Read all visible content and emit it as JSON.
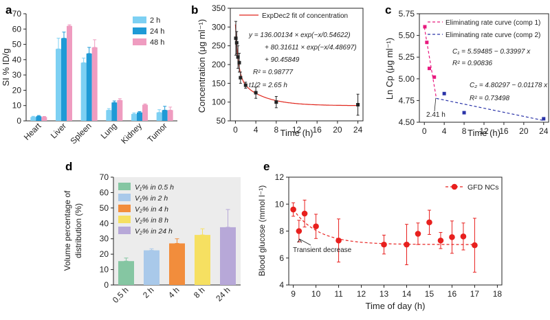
{
  "chart_data": [
    {
      "panel": "a",
      "type": "bar",
      "ylabel": "SI % ID/g",
      "categories": [
        "Heart",
        "Liver",
        "Spleen",
        "Lung",
        "Kidney",
        "Tumor"
      ],
      "ylim": [
        0,
        70
      ],
      "yticks": [
        0,
        10,
        20,
        30,
        40,
        50,
        60,
        70
      ],
      "legend_position": "top-right",
      "series": [
        {
          "name": "2 h",
          "color": "#7dd0f3",
          "values": [
            2.5,
            47,
            38,
            7,
            4.5,
            5.5
          ],
          "err": [
            0.5,
            7,
            3,
            1,
            0.7,
            1.8
          ]
        },
        {
          "name": "24 h",
          "color": "#1f9ad6",
          "values": [
            3,
            54,
            44,
            12,
            5.5,
            7
          ],
          "err": [
            0.5,
            4,
            4,
            1,
            0.6,
            2.5
          ]
        },
        {
          "name": "48 h",
          "color": "#ef9cc0",
          "values": [
            2.5,
            62,
            48,
            13.5,
            10.5,
            7
          ],
          "err": [
            0.4,
            0.8,
            5,
            1,
            0.6,
            2
          ]
        }
      ]
    },
    {
      "panel": "b",
      "type": "scatter",
      "xlabel": "Time (h)",
      "ylabel": "Concentration (μg ml⁻¹)",
      "xlim": [
        -1,
        25
      ],
      "ylim": [
        50,
        350
      ],
      "xticks": [
        0,
        4,
        8,
        12,
        16,
        20,
        24
      ],
      "yticks": [
        50,
        100,
        150,
        200,
        250,
        300,
        350
      ],
      "series": [
        {
          "name": "",
          "color": "#222222",
          "x": [
            0.08,
            0.25,
            0.5,
            0.75,
            1,
            2,
            4,
            8,
            24
          ],
          "y": [
            270,
            258,
            220,
            205,
            165,
            145,
            125,
            100,
            93
          ],
          "err": [
            45,
            30,
            30,
            25,
            15,
            8,
            15,
            15,
            28
          ]
        }
      ],
      "fit": {
        "name": "ExpDec2 fit of concentration",
        "color": "#e0251b"
      },
      "annotations": [
        "y = 136.00134 × exp(−x/0.54622)",
        "+ 80.31611 × exp(−x/4.48697)",
        "+ 90.45849",
        "R² = 0.98777",
        "t1/2 = 2.65 h"
      ]
    },
    {
      "panel": "c",
      "type": "scatter",
      "xlabel": "Time (h)",
      "ylabel": "Ln Cp (μg ml⁻¹)",
      "xlim": [
        -1,
        25
      ],
      "ylim": [
        4.5,
        5.75
      ],
      "xticks": [
        0,
        4,
        8,
        12,
        16,
        20,
        24
      ],
      "yticks": [
        4.5,
        4.75,
        5.0,
        5.25,
        5.5,
        5.75
      ],
      "series": [
        {
          "name": "Eliminating rate curve (comp 1)",
          "color": "#e8197e",
          "x": [
            0.1,
            0.5,
            1,
            2
          ],
          "y": [
            5.6,
            5.42,
            5.12,
            5.02
          ]
        },
        {
          "name": "Eliminating rate curve (comp 2)",
          "color": "#2a33a8",
          "x": [
            4,
            8,
            24
          ],
          "y": [
            4.83,
            4.61,
            4.54
          ]
        }
      ],
      "annotations": [
        "C₁ = 5.59485 − 0.33997 x",
        "R² = 0.90836",
        "C₂ = 4.80297 − 0.01178 x",
        "R² = 0.73498",
        "2.41 h"
      ]
    },
    {
      "panel": "d",
      "type": "bar",
      "ylabel": "Volume percentage of distribution (%)",
      "categories": [
        "0.5 h",
        "2 h",
        "4 h",
        "8 h",
        "24 h"
      ],
      "ylim": [
        0,
        70
      ],
      "yticks": [
        0,
        10,
        20,
        30,
        40,
        50,
        60,
        70
      ],
      "values": [
        15.5,
        22.5,
        27,
        32.5,
        37.5
      ],
      "err": [
        2,
        1,
        3,
        4,
        11.5
      ],
      "colors": [
        "#85c6a2",
        "#a9c9ea",
        "#f28d3c",
        "#f6e061",
        "#b7a8d8"
      ],
      "legend": [
        "V₁% in 0.5 h",
        "V₁% in 2 h",
        "V₂% in 4 h",
        "V₂% in 8 h",
        "V₂% in 24 h"
      ],
      "legend_position": "top-left",
      "background": "#ececec"
    },
    {
      "panel": "e",
      "type": "line",
      "xlabel": "Time of day (h)",
      "ylabel": "Blood glucose (mmol l⁻¹)",
      "xlim": [
        8.8,
        18.2
      ],
      "ylim": [
        4,
        12
      ],
      "xticks": [
        9,
        10,
        11,
        12,
        13,
        14,
        15,
        16,
        17,
        18
      ],
      "yticks": [
        4,
        6,
        8,
        10,
        12
      ],
      "series": [
        {
          "name": "GFD NCs",
          "color": "#e8201e",
          "x": [
            9,
            9.25,
            9.5,
            10,
            11,
            13,
            14,
            14.5,
            15,
            15.5,
            16,
            16.5,
            17
          ],
          "y": [
            9.6,
            8.0,
            9.3,
            8.35,
            7.3,
            7.0,
            7.0,
            7.8,
            8.65,
            7.3,
            7.55,
            7.6,
            6.95
          ],
          "err": [
            0.5,
            0.8,
            1.0,
            0.9,
            1.6,
            0.7,
            1.5,
            0.8,
            0.9,
            0.6,
            1.2,
            1.0,
            2.0
          ]
        }
      ],
      "annotations": [
        "Transient decrease"
      ]
    }
  ],
  "panel_labels": [
    "a",
    "b",
    "c",
    "d",
    "e"
  ]
}
